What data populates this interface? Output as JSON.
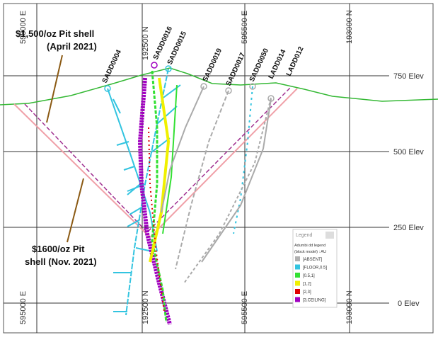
{
  "annotations": {
    "pit_2021_april": [
      "$1,500/oz Pit shell",
      "(April 2021)"
    ],
    "pit_2021_nov": [
      "$1600/oz  Pit",
      "shell (Nov. 2021)"
    ]
  },
  "grid": {
    "elevations": [
      "750 Elev",
      "500 Elev",
      "250 Elev",
      "0 Elev"
    ],
    "top_labels": [
      "595000 E",
      "192500 N",
      "595500 E",
      "193000 N"
    ],
    "bottom_labels": [
      "595000 E",
      "192500 N",
      "595500 E",
      "193000 N"
    ]
  },
  "drillholes": [
    "SADD0004",
    "SADD0016",
    "SADD0015",
    "SADD0019",
    "SADD0017",
    "SADD0050",
    "LADD014",
    "LADD012"
  ],
  "legend": {
    "title": "Legend",
    "subtitle": [
      "Adumbi dd legend",
      "(block model) : AU"
    ],
    "entries": [
      {
        "label": "[ABSENT]",
        "color": "#b0b0b0"
      },
      {
        "label": "[FLOOR,0.5]",
        "color": "#33c4e0"
      },
      {
        "label": "[0.5,1]",
        "color": "#33e033"
      },
      {
        "label": "[1,2]",
        "color": "#f0f000"
      },
      {
        "label": "[2,3]",
        "color": "#e00000"
      },
      {
        "label": "[3,CEILING]",
        "color": "#a000c0"
      }
    ]
  }
}
